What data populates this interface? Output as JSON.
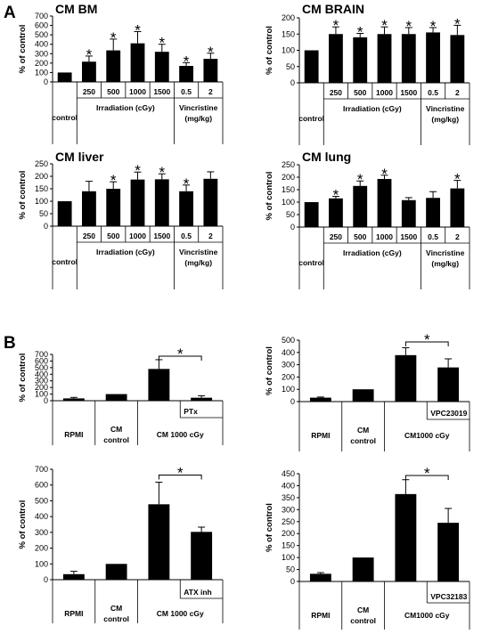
{
  "panel_labels": [
    "A",
    "B"
  ],
  "y_label": "% of control",
  "chart_data": [
    {
      "type": "bar",
      "panel": "A",
      "title": "CM BM",
      "ylabel": "% of control",
      "ylim": [
        0,
        700
      ],
      "yticks": [
        0,
        100,
        200,
        300,
        400,
        500,
        600,
        700
      ],
      "categories": [
        "control",
        "250",
        "500",
        "1000",
        "1500",
        "0.5",
        "2"
      ],
      "values": [
        100,
        215,
        335,
        410,
        320,
        170,
        245
      ],
      "errors": [
        0,
        60,
        120,
        125,
        80,
        35,
        60
      ],
      "significance": [
        "",
        "*",
        "*",
        "*",
        "*",
        "*",
        "*"
      ],
      "groups": [
        {
          "label": "control",
          "categories": [
            "control"
          ]
        },
        {
          "label": "Irradiation (cGy)",
          "categories": [
            "250",
            "500",
            "1000",
            "1500"
          ]
        },
        {
          "label": "Vincristine (mg/kg)",
          "lines": [
            "Vincristine",
            "(mg/kg)"
          ],
          "categories": [
            "0.5",
            "2"
          ]
        }
      ]
    },
    {
      "type": "bar",
      "panel": "A",
      "title": "CM BRAIN",
      "ylabel": "% of control",
      "ylim": [
        0,
        200
      ],
      "yticks": [
        0,
        50,
        100,
        150,
        200
      ],
      "categories": [
        "control",
        "250",
        "500",
        "1000",
        "1500",
        "0.5",
        "2"
      ],
      "values": [
        100,
        150,
        140,
        150,
        150,
        155,
        147
      ],
      "errors": [
        0,
        22,
        12,
        22,
        20,
        15,
        30
      ],
      "significance": [
        "",
        "*",
        "*",
        "*",
        "*",
        "*",
        "*"
      ],
      "groups": [
        {
          "label": "control",
          "categories": [
            "control"
          ]
        },
        {
          "label": "Irradiation (cGy)",
          "categories": [
            "250",
            "500",
            "1000",
            "1500"
          ]
        },
        {
          "label": "Vincristine (mg/kg)",
          "lines": [
            "Vincristine",
            "(mg/kg)"
          ],
          "categories": [
            "0.5",
            "2"
          ]
        }
      ]
    },
    {
      "type": "bar",
      "panel": "A",
      "title": "CM liver",
      "ylabel": "% of control",
      "ylim": [
        0,
        250
      ],
      "yticks": [
        0,
        50,
        100,
        150,
        200,
        250
      ],
      "categories": [
        "control",
        "250",
        "500",
        "1000",
        "1500",
        "0.5",
        "2"
      ],
      "values": [
        100,
        140,
        150,
        187,
        188,
        140,
        190
      ],
      "errors": [
        0,
        40,
        28,
        30,
        22,
        25,
        28
      ],
      "significance": [
        "",
        "",
        "*",
        "*",
        "*",
        "*",
        ""
      ],
      "groups": [
        {
          "label": "control",
          "categories": [
            "control"
          ]
        },
        {
          "label": "Irradiation (cGy)",
          "categories": [
            "250",
            "500",
            "1000",
            "1500"
          ]
        },
        {
          "label": "Vincristine (mg/kg)",
          "lines": [
            "Vincristine",
            "(mg/kg)"
          ],
          "categories": [
            "0.5",
            "2"
          ]
        }
      ]
    },
    {
      "type": "bar",
      "panel": "A",
      "title": "CM lung",
      "ylabel": "% of control",
      "ylim": [
        0,
        250
      ],
      "yticks": [
        0,
        50,
        100,
        150,
        200,
        250
      ],
      "categories": [
        "control",
        "250",
        "500",
        "1000",
        "1500",
        "0.5",
        "2"
      ],
      "values": [
        100,
        115,
        165,
        193,
        108,
        117,
        155
      ],
      "errors": [
        0,
        8,
        20,
        15,
        10,
        25,
        32
      ],
      "significance": [
        "",
        "*",
        "*",
        "*",
        "",
        "",
        "*"
      ],
      "groups": [
        {
          "label": "control",
          "categories": [
            "control"
          ]
        },
        {
          "label": "Irradiation (cGy)",
          "categories": [
            "250",
            "500",
            "1000",
            "1500"
          ]
        },
        {
          "label": "Vincristine (mg/kg)",
          "lines": [
            "Vincristine",
            "(mg/kg)"
          ],
          "categories": [
            "0.5",
            "2"
          ]
        }
      ]
    },
    {
      "type": "bar",
      "panel": "B",
      "title": "",
      "ylabel": "% of control",
      "ylim": [
        0,
        700
      ],
      "yticks": [
        0,
        100,
        200,
        300,
        400,
        500,
        600,
        700
      ],
      "categories": [
        "RPMI",
        "CM control",
        "CM 1000 cGy",
        "PTx"
      ],
      "values": [
        35,
        100,
        480,
        45
      ],
      "errors": [
        15,
        0,
        140,
        30
      ],
      "inhibitor_label": "PTx",
      "comparison": {
        "from": 2,
        "to": 3,
        "label": "*"
      },
      "groups": [
        {
          "label": "RPMI",
          "lines": [
            "RPMI"
          ],
          "bars": [
            0
          ]
        },
        {
          "label": "CM control",
          "lines": [
            "CM",
            "control"
          ],
          "bars": [
            1
          ]
        },
        {
          "label": "CM 1000 cGy",
          "lines": [
            "CM 1000 cGy"
          ],
          "bars": [
            2,
            3
          ]
        }
      ]
    },
    {
      "type": "bar",
      "panel": "B",
      "title": "",
      "ylabel": "% of control",
      "ylim": [
        0,
        500
      ],
      "yticks": [
        0,
        100,
        200,
        300,
        400,
        500
      ],
      "categories": [
        "RPMI",
        "CM control",
        "CM1000 cGy",
        "VPC23019"
      ],
      "values": [
        32,
        100,
        378,
        278
      ],
      "errors": [
        5,
        0,
        60,
        70
      ],
      "inhibitor_label": "VPC23019",
      "comparison": {
        "from": 2,
        "to": 3,
        "label": "*"
      },
      "groups": [
        {
          "label": "RPMI",
          "lines": [
            "RPMI"
          ],
          "bars": [
            0
          ]
        },
        {
          "label": "CM control",
          "lines": [
            "CM",
            "control"
          ],
          "bars": [
            1
          ]
        },
        {
          "label": "CM1000 cGy",
          "lines": [
            "CM1000 cGy"
          ],
          "bars": [
            2,
            3
          ]
        }
      ]
    },
    {
      "type": "bar",
      "panel": "B",
      "title": "",
      "ylabel": "% of control",
      "ylim": [
        0,
        700
      ],
      "yticks": [
        0,
        100,
        200,
        300,
        400,
        500,
        600,
        700
      ],
      "categories": [
        "RPMI",
        "CM control",
        "CM 1000 cGy",
        "ATX inh"
      ],
      "values": [
        35,
        100,
        478,
        303
      ],
      "errors": [
        18,
        0,
        140,
        30
      ],
      "inhibitor_label": "ATX inh",
      "comparison": {
        "from": 2,
        "to": 3,
        "label": "*"
      },
      "groups": [
        {
          "label": "RPMI",
          "lines": [
            "RPMI"
          ],
          "bars": [
            0
          ]
        },
        {
          "label": "CM control",
          "lines": [
            "CM",
            "control"
          ],
          "bars": [
            1
          ]
        },
        {
          "label": "CM 1000 cGy",
          "lines": [
            "CM 1000 cGy"
          ],
          "bars": [
            2,
            3
          ]
        }
      ]
    },
    {
      "type": "bar",
      "panel": "B",
      "title": "",
      "ylabel": "% of control",
      "ylim": [
        0,
        450
      ],
      "yticks": [
        0,
        50,
        100,
        150,
        200,
        250,
        300,
        350,
        400,
        450
      ],
      "categories": [
        "RPMI",
        "CM control",
        "CM1000 cGy",
        "VPC32183"
      ],
      "values": [
        32,
        100,
        365,
        245
      ],
      "errors": [
        5,
        0,
        60,
        60
      ],
      "inhibitor_label": "VPC32183",
      "comparison": {
        "from": 2,
        "to": 3,
        "label": "*"
      },
      "groups": [
        {
          "label": "RPMI",
          "lines": [
            "RPMI"
          ],
          "bars": [
            0
          ]
        },
        {
          "label": "CM control",
          "lines": [
            "CM",
            "control"
          ],
          "bars": [
            1
          ]
        },
        {
          "label": "CM1000 cGy",
          "lines": [
            "CM1000 cGy"
          ],
          "bars": [
            2,
            3
          ]
        }
      ]
    }
  ]
}
